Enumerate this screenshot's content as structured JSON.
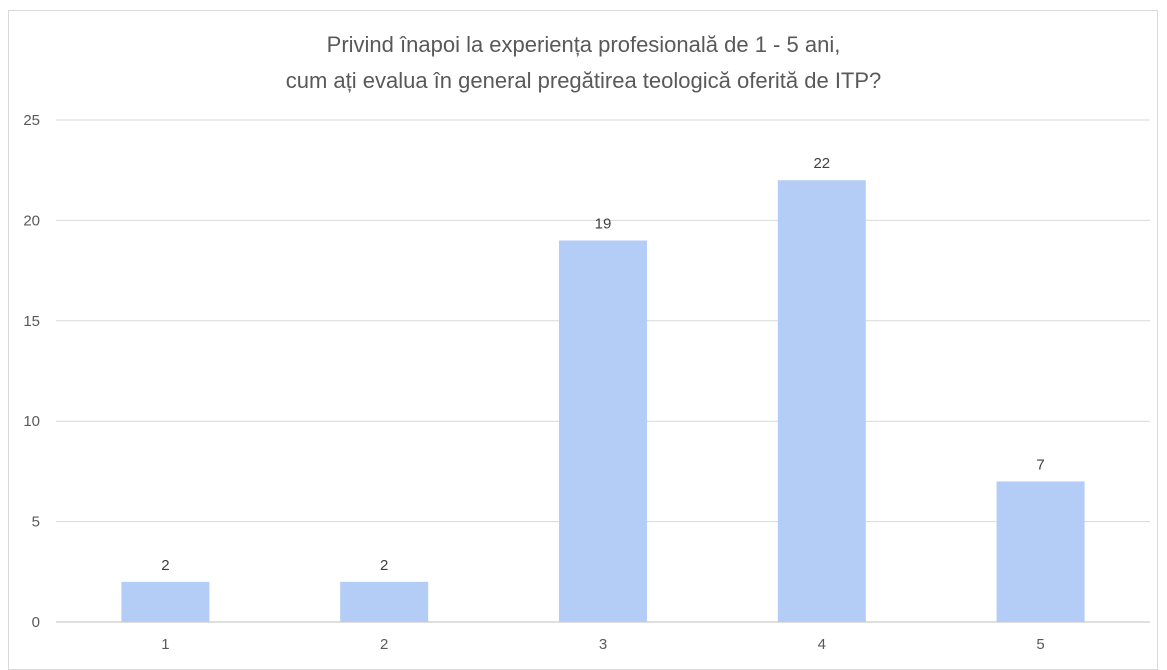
{
  "chart_data": {
    "type": "bar",
    "title_lines": [
      "Privind înapoi la experiența profesională de 1 - 5 ani,",
      "cum ați evalua în general pregătirea teologică oferită de ITP?"
    ],
    "categories": [
      "1",
      "2",
      "3",
      "4",
      "5"
    ],
    "values": [
      2,
      2,
      19,
      22,
      7
    ],
    "ylim": [
      0,
      25
    ],
    "yticks": [
      0,
      5,
      10,
      15,
      20,
      25
    ],
    "grid": true,
    "legend": "none",
    "data_labels": true,
    "colors": {
      "bar": "#b4cdf7",
      "grid": "#d9d9d9",
      "text": "#595959"
    }
  }
}
